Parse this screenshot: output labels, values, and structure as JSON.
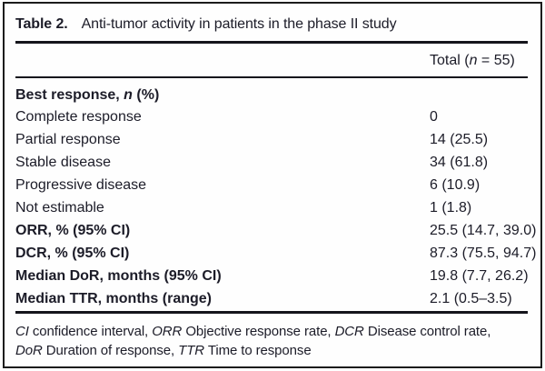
{
  "table": {
    "label": "Table 2.",
    "caption": "Anti-tumor activity in patients in the phase II study",
    "header": {
      "total_parts": [
        {
          "t": "Total ("
        },
        {
          "t": "n",
          "i": 1
        },
        {
          "t": " = 55)"
        }
      ]
    },
    "rows": [
      {
        "parts": [
          {
            "t": "Best response, ",
            "b": 1
          },
          {
            "t": "n",
            "b": 1,
            "i": 1
          },
          {
            "t": " (%)",
            "b": 1
          }
        ],
        "value": ""
      },
      {
        "parts": [
          {
            "t": "Complete response"
          }
        ],
        "value": "0"
      },
      {
        "parts": [
          {
            "t": "Partial response"
          }
        ],
        "value": "14 (25.5)"
      },
      {
        "parts": [
          {
            "t": "Stable disease"
          }
        ],
        "value": "34 (61.8)"
      },
      {
        "parts": [
          {
            "t": "Progressive disease"
          }
        ],
        "value": "6 (10.9)"
      },
      {
        "parts": [
          {
            "t": "Not estimable"
          }
        ],
        "value": "1 (1.8)"
      },
      {
        "parts": [
          {
            "t": "ORR, % (95% CI)",
            "b": 1
          }
        ],
        "value": "25.5 (14.7, 39.0)"
      },
      {
        "parts": [
          {
            "t": "DCR, % (95% CI)",
            "b": 1
          }
        ],
        "value": "87.3 (75.5, 94.7)"
      },
      {
        "parts": [
          {
            "t": "Median DoR, months (95% CI)",
            "b": 1
          }
        ],
        "value": "19.8 (7.7, 26.2)"
      },
      {
        "parts": [
          {
            "t": "Median TTR, months (range)",
            "b": 1
          }
        ],
        "value": "2.1 (0.5–3.5)"
      }
    ],
    "footnote_lines": [
      [
        {
          "t": "CI",
          "i": 1
        },
        {
          "t": " confidence interval, "
        },
        {
          "t": "ORR",
          "i": 1
        },
        {
          "t": " Objective response rate, "
        },
        {
          "t": "DCR",
          "i": 1
        },
        {
          "t": " Disease control rate,"
        }
      ],
      [
        {
          "t": "DoR",
          "i": 1
        },
        {
          "t": " Duration of response, "
        },
        {
          "t": "TTR",
          "i": 1
        },
        {
          "t": " Time to response"
        }
      ]
    ],
    "text_color": "#1c1c28",
    "rule_color": "#15151c"
  }
}
